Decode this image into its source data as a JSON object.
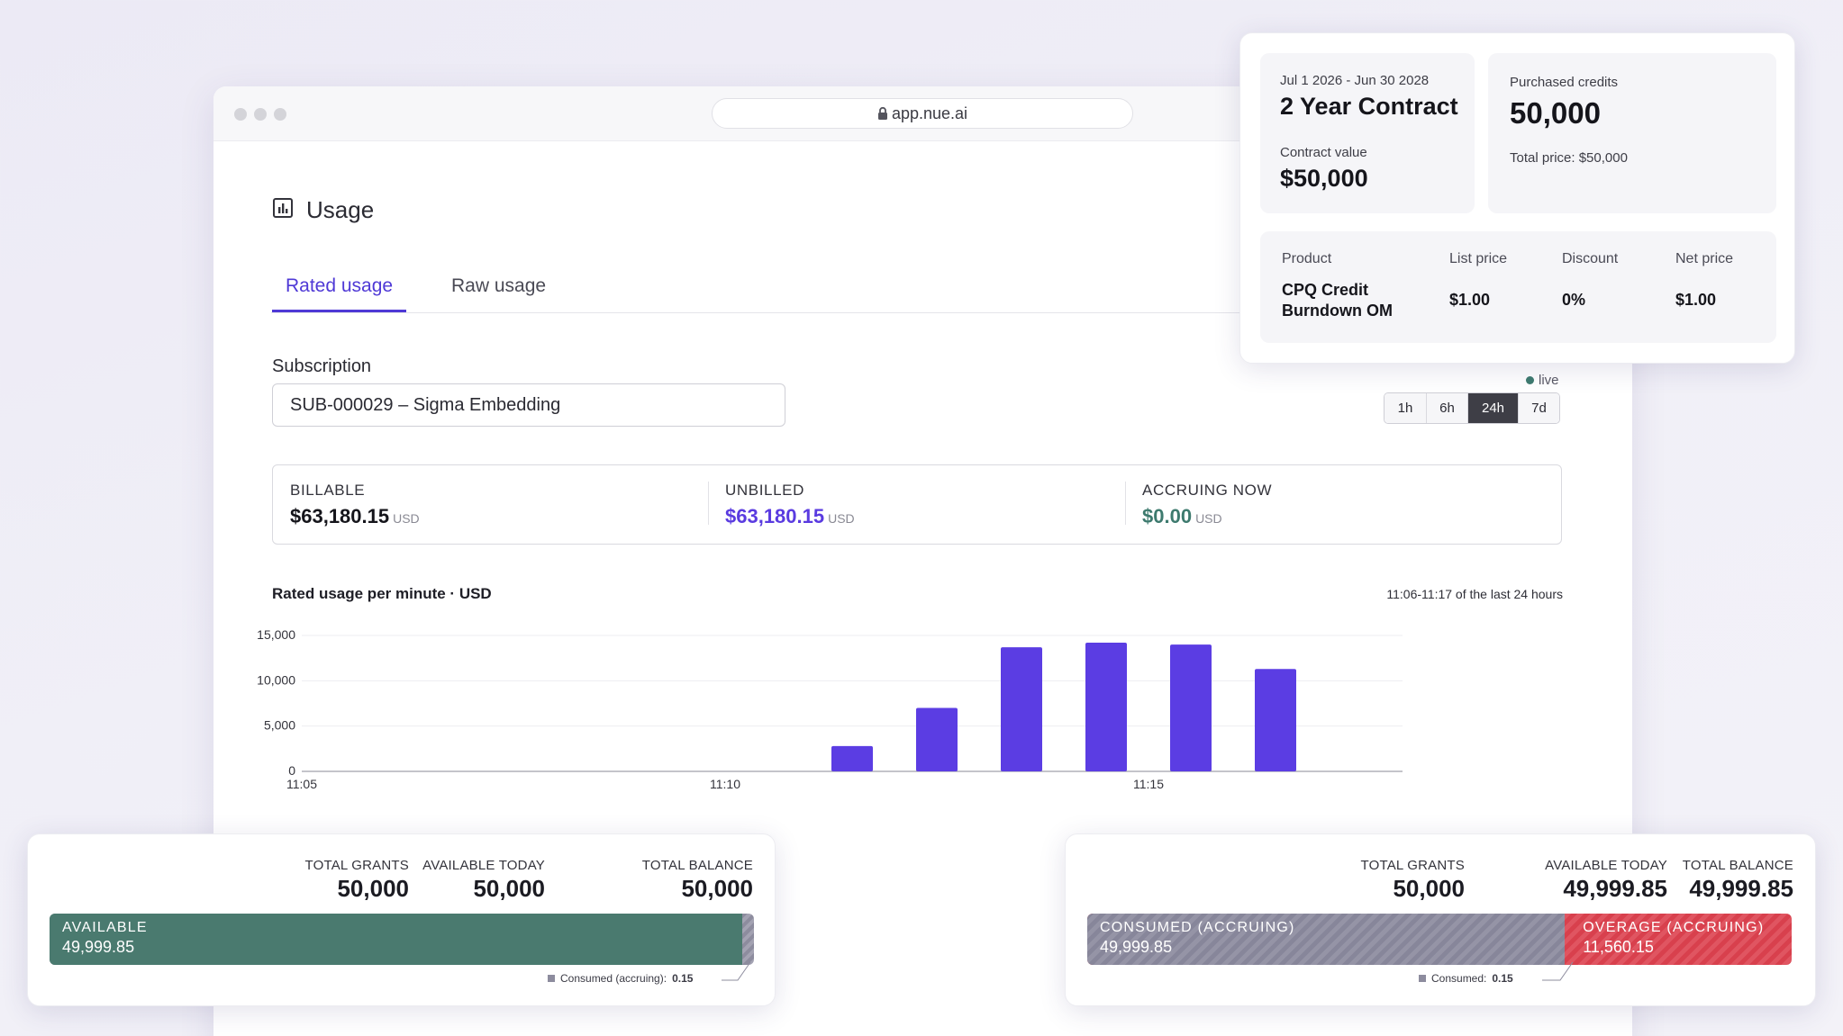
{
  "browser": {
    "url": "app.nue.ai"
  },
  "page": {
    "title": "Usage",
    "tabs": [
      {
        "label": "Rated usage",
        "active": true
      },
      {
        "label": "Raw usage",
        "active": false
      }
    ],
    "subscription": {
      "label": "Subscription",
      "value": "SUB-000029 – Sigma Embedding"
    },
    "live_label": "live",
    "ranges": [
      {
        "label": "1h",
        "active": false
      },
      {
        "label": "6h",
        "active": false
      },
      {
        "label": "24h",
        "active": true
      },
      {
        "label": "7d",
        "active": false
      }
    ],
    "summary": [
      {
        "label": "BILLABLE",
        "value": "$63,180.15",
        "unit": "USD",
        "color": "#15151b"
      },
      {
        "label": "UNBILLED",
        "value": "$63,180.15",
        "unit": "USD",
        "color": "#5a3be0"
      },
      {
        "label": "ACCRUING NOW",
        "value": "$0.00",
        "unit": "USD",
        "color": "#3d7a6e"
      }
    ]
  },
  "chart_data": {
    "type": "bar",
    "title": "Rated usage per minute · USD",
    "range_note": "11:06-11:17 of the last 24 hours",
    "x_tick_labels": [
      "11:05",
      "11:10",
      "11:15"
    ],
    "y_tick_labels": [
      "0",
      "5,000",
      "10,000",
      "15,000"
    ],
    "ylim": [
      0,
      15000
    ],
    "xlim_minutes": [
      0,
      13
    ],
    "bar_color": "#5b3de3",
    "bars": [
      {
        "minute": 6.5,
        "value": 2800
      },
      {
        "minute": 7.5,
        "value": 7000
      },
      {
        "minute": 8.5,
        "value": 13700
      },
      {
        "minute": 9.5,
        "value": 14200
      },
      {
        "minute": 10.5,
        "value": 14000
      },
      {
        "minute": 11.5,
        "value": 11300
      }
    ]
  },
  "contract_card": {
    "date_range": "Jul 1 2026 - Jun 30 2028",
    "title": "2 Year Contract",
    "value_label": "Contract value",
    "value": "$50,000",
    "credits_label": "Purchased credits",
    "credits": "50,000",
    "total_price": "Total price: $50,000",
    "table": {
      "headers": [
        "Product",
        "List price",
        "Discount",
        "Net price"
      ],
      "row": [
        "CPQ Credit Burndown OM",
        "$1.00",
        "0%",
        "$1.00"
      ]
    }
  },
  "balance_left": {
    "stats": [
      {
        "label": "TOTAL GRANTS",
        "value": "50,000"
      },
      {
        "label": "AVAILABLE TODAY",
        "value": "50,000"
      },
      {
        "label": "TOTAL BALANCE",
        "value": "50,000"
      }
    ],
    "bar_label": "AVAILABLE",
    "bar_value": "49,999.85",
    "bar_color": "#4a7a6f",
    "available_fraction": 0.983,
    "footnote_label": "Consumed (accruing):",
    "footnote_value": "0.15"
  },
  "balance_right": {
    "stats": [
      {
        "label": "TOTAL GRANTS",
        "value": "50,000"
      },
      {
        "label": "AVAILABLE TODAY",
        "value": "49,999.85"
      },
      {
        "label": "TOTAL BALANCE",
        "value": "49,999.85"
      }
    ],
    "consumed_label": "CONSUMED (ACCRUING)",
    "consumed_value": "49,999.85",
    "consumed_color": "#8b8a9b",
    "overage_label": "OVERAGE (ACCRUING)",
    "overage_value": "11,560.15",
    "overage_color": "#d8404d",
    "consumed_fraction": 0.678,
    "footnote_label": "Consumed:",
    "footnote_value": "0.15"
  }
}
